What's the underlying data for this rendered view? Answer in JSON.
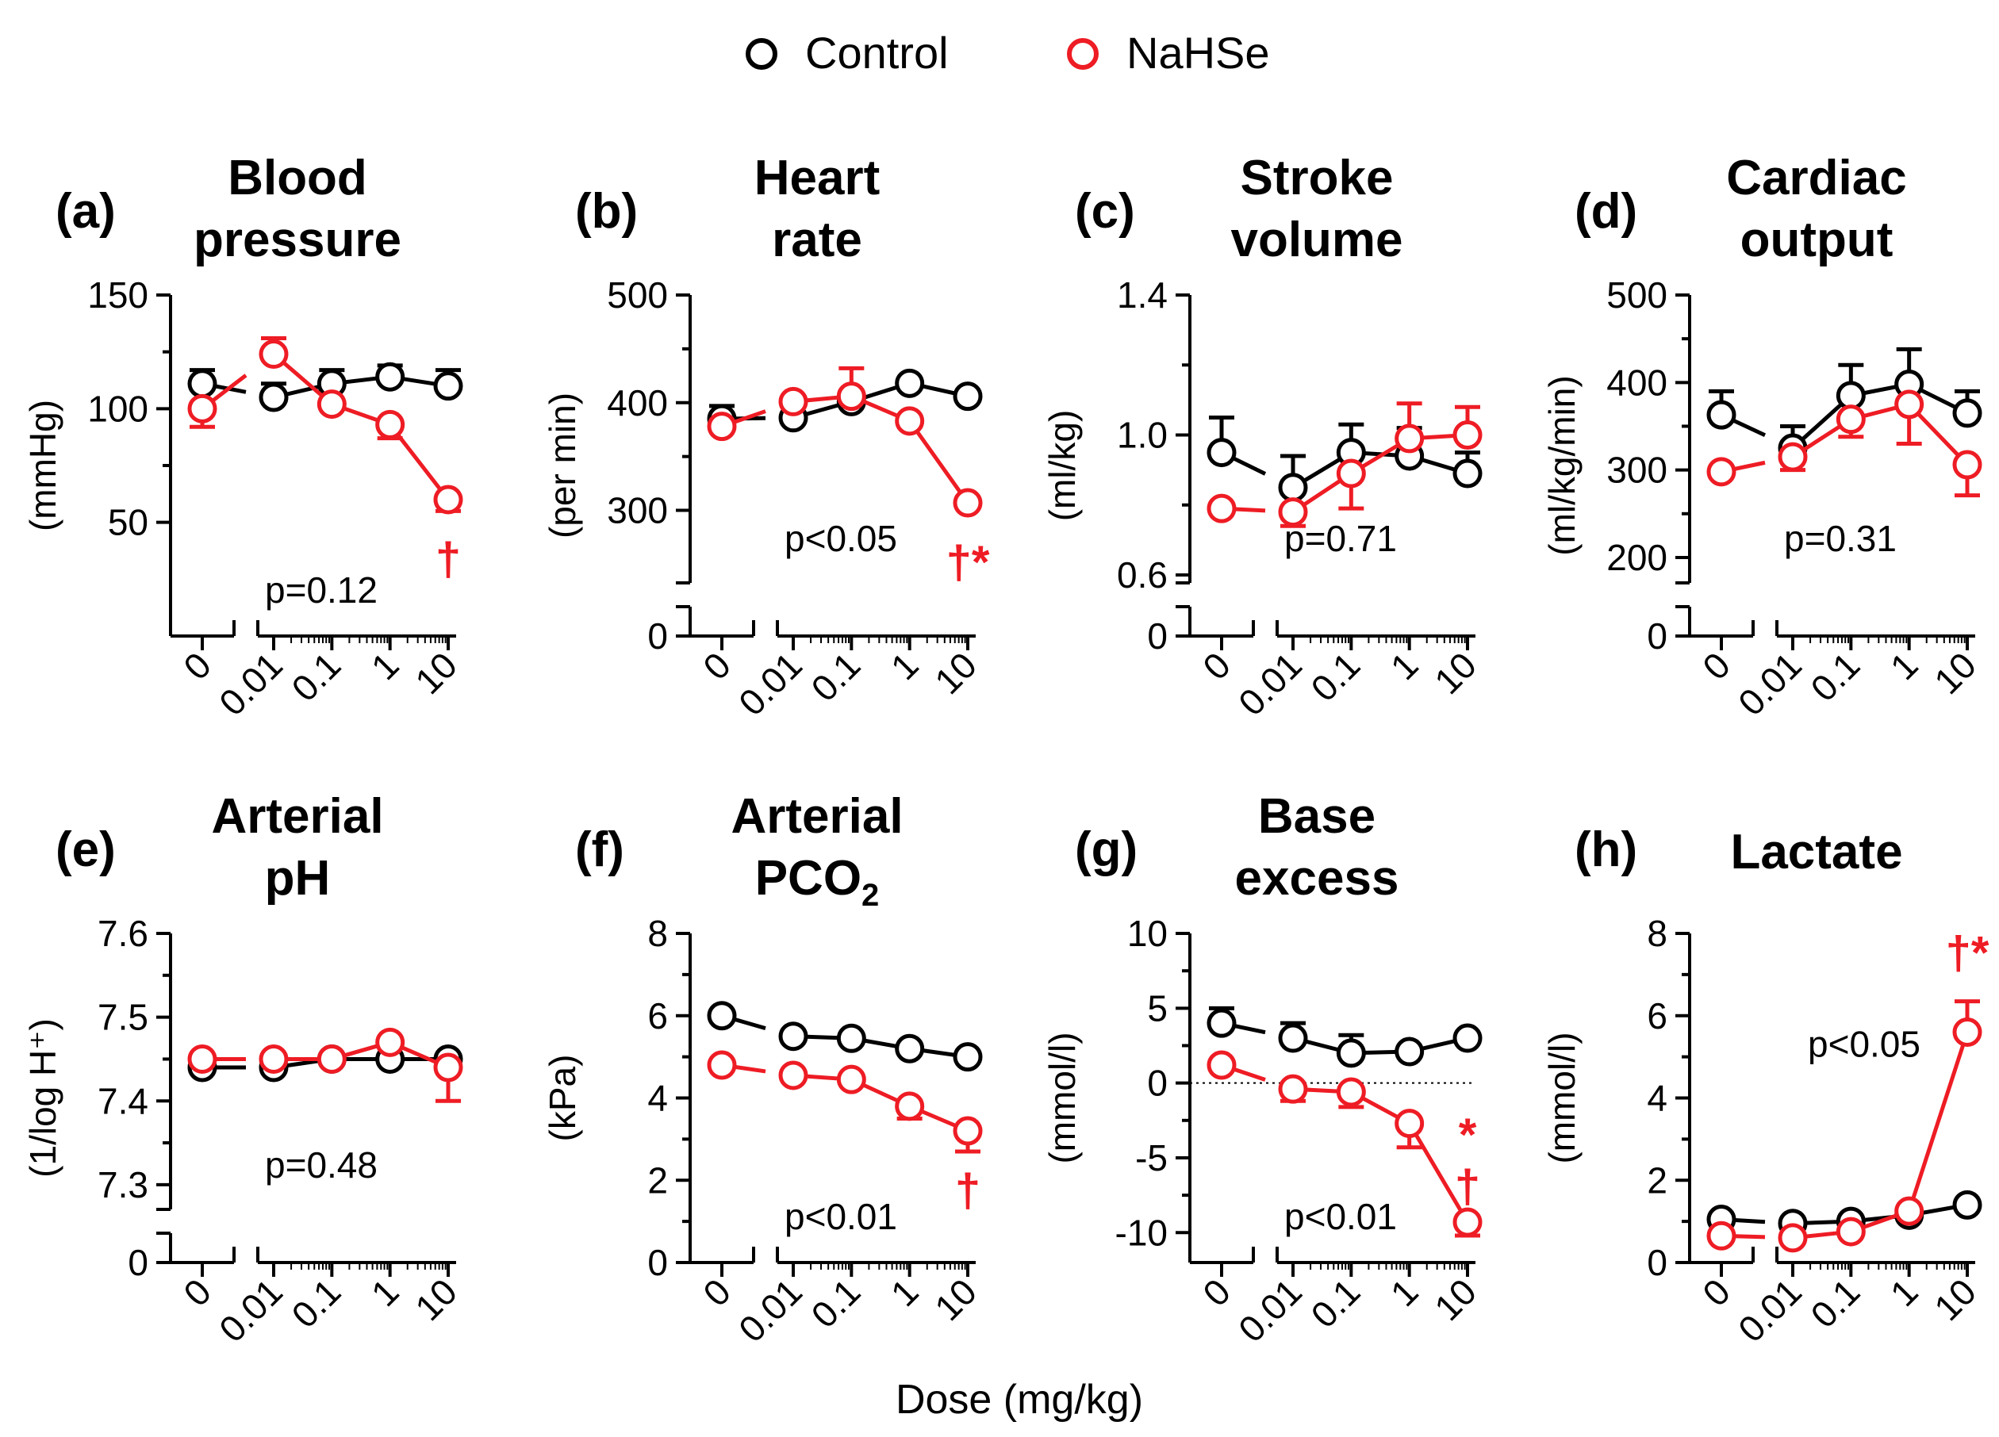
{
  "legend": {
    "entries": [
      {
        "label": "Control",
        "color": "#000000"
      },
      {
        "label": "NaHSe",
        "color": "#ee1c24"
      }
    ]
  },
  "xlabel": "Dose (mg/kg)",
  "x_ticks": [
    "0",
    "0.01",
    "0.1",
    "1",
    "10"
  ],
  "chart_data": [
    {
      "type": "line",
      "letter": "(a)",
      "title": [
        "Blood",
        "pressure"
      ],
      "ylabel": "(mmHg)",
      "yticks": [
        "150",
        "100",
        "50"
      ],
      "ylim": [
        0,
        150
      ],
      "ylim_break": null,
      "pvalue": "p=0.12",
      "zero_line": false,
      "x": [
        0,
        0.01,
        0.1,
        1,
        10
      ],
      "series": [
        {
          "name": "Control",
          "values": [
            111,
            105,
            111,
            114,
            110
          ],
          "err": [
            6,
            6,
            6,
            5,
            7
          ]
        },
        {
          "name": "NaHSe",
          "values": [
            100,
            124,
            102,
            93,
            60
          ],
          "err": [
            8,
            7,
            4,
            6,
            5
          ]
        }
      ],
      "annotations": [
        {
          "text": "†",
          "x": 10,
          "series": "NaHSe",
          "pos": "below"
        }
      ]
    },
    {
      "type": "line",
      "letter": "(b)",
      "title": [
        "Heart",
        "rate"
      ],
      "ylabel": "(per min)",
      "yticks": [
        "500",
        "400",
        "300"
      ],
      "ylim": [
        240,
        500
      ],
      "ylim_break": true,
      "pvalue": "p<0.05",
      "zero_line": false,
      "x": [
        0,
        0.01,
        0.1,
        1,
        10
      ],
      "series": [
        {
          "name": "Control",
          "values": [
            385,
            386,
            401,
            418,
            406
          ],
          "err": [
            12,
            8,
            8,
            8,
            10
          ]
        },
        {
          "name": "NaHSe",
          "values": [
            378,
            401,
            406,
            383,
            307
          ],
          "err": [
            10,
            6,
            26,
            4,
            10
          ]
        }
      ],
      "annotations": [
        {
          "text": "†*",
          "x": 10,
          "series": "NaHSe",
          "pos": "below"
        }
      ]
    },
    {
      "type": "line",
      "letter": "(c)",
      "title": [
        "Stroke",
        "volume"
      ],
      "ylabel": "(ml/kg)",
      "yticks": [
        "1.4",
        "1.0",
        "0.6"
      ],
      "ylim": [
        0.6,
        1.4
      ],
      "ylim_break": true,
      "pvalue": "p=0.71",
      "zero_line": false,
      "x": [
        0,
        0.01,
        0.1,
        1,
        10
      ],
      "series": [
        {
          "name": "Control",
          "values": [
            0.95,
            0.85,
            0.95,
            0.94,
            0.89
          ],
          "err": [
            0.1,
            0.09,
            0.08,
            0.08,
            0.06
          ]
        },
        {
          "name": "NaHSe",
          "values": [
            0.79,
            0.78,
            0.89,
            0.99,
            1.0
          ],
          "err": [
            0.02,
            0.04,
            0.1,
            0.1,
            0.08
          ]
        }
      ],
      "annotations": []
    },
    {
      "type": "line",
      "letter": "(d)",
      "title": [
        "Cardiac",
        "output"
      ],
      "ylabel": "(ml/kg/min)",
      "yticks": [
        "500",
        "400",
        "300",
        "200"
      ],
      "ylim": [
        180,
        500
      ],
      "ylim_break": true,
      "pvalue": "p=0.31",
      "zero_line": false,
      "x": [
        0,
        0.01,
        0.1,
        1,
        10
      ],
      "series": [
        {
          "name": "Control",
          "values": [
            363,
            325,
            385,
            398,
            365
          ],
          "err": [
            27,
            25,
            35,
            40,
            25
          ]
        },
        {
          "name": "NaHSe",
          "values": [
            298,
            315,
            358,
            375,
            306
          ],
          "err": [
            5,
            15,
            20,
            45,
            35
          ]
        }
      ],
      "annotations": []
    },
    {
      "type": "line",
      "letter": "(e)",
      "title": [
        "Arterial",
        "pH"
      ],
      "ylabel": "(1/log H⁺)",
      "yticks": [
        "7.6",
        "7.5",
        "7.4",
        "7.3"
      ],
      "ylim": [
        7.28,
        7.6
      ],
      "ylim_break": true,
      "pvalue": "p=0.48",
      "zero_line": false,
      "x": [
        0,
        0.01,
        0.1,
        1,
        10
      ],
      "series": [
        {
          "name": "Control",
          "values": [
            7.44,
            7.44,
            7.45,
            7.45,
            7.45
          ],
          "err": [
            0.005,
            0.005,
            0.005,
            0.005,
            0.005
          ]
        },
        {
          "name": "NaHSe",
          "values": [
            7.45,
            7.45,
            7.45,
            7.47,
            7.44
          ],
          "err": [
            0.005,
            0.005,
            0.005,
            0.01,
            0.04
          ]
        }
      ],
      "annotations": []
    },
    {
      "type": "line",
      "letter": "(f)",
      "title": [
        "Arterial",
        "PCO"
      ],
      "title_sub": "2",
      "ylabel": "(kPa)",
      "yticks": [
        "8",
        "6",
        "4",
        "2",
        "0"
      ],
      "ylim": [
        0,
        8
      ],
      "ylim_break": null,
      "pvalue": "p<0.01",
      "zero_line": false,
      "x": [
        0,
        0.01,
        0.1,
        1,
        10
      ],
      "series": [
        {
          "name": "Control",
          "values": [
            6.0,
            5.5,
            5.45,
            5.2,
            5.0
          ],
          "err": [
            0.1,
            0.1,
            0.1,
            0.1,
            0.1
          ]
        },
        {
          "name": "NaHSe",
          "values": [
            4.8,
            4.55,
            4.45,
            3.8,
            3.2
          ],
          "err": [
            0.1,
            0.1,
            0.1,
            0.3,
            0.5
          ]
        }
      ],
      "annotations": [
        {
          "text": "†",
          "x": 10,
          "series": "NaHSe",
          "pos": "below"
        }
      ]
    },
    {
      "type": "line",
      "letter": "(g)",
      "title": [
        "Base",
        "excess"
      ],
      "ylabel": "(mmol/l)",
      "yticks": [
        "10",
        "5",
        "0",
        "-5",
        "-10"
      ],
      "ylim": [
        -12,
        10
      ],
      "ylim_break": null,
      "pvalue": "p<0.01",
      "zero_line": true,
      "x": [
        0,
        0.01,
        0.1,
        1,
        10
      ],
      "series": [
        {
          "name": "Control",
          "values": [
            4.0,
            3.0,
            2.0,
            2.1,
            3.0
          ],
          "err": [
            1.0,
            1.0,
            1.2,
            0.5,
            0.4
          ]
        },
        {
          "name": "NaHSe",
          "values": [
            1.2,
            -0.4,
            -0.6,
            -2.7,
            -9.3
          ],
          "err": [
            0.5,
            0.8,
            1.0,
            1.6,
            0.9
          ]
        }
      ],
      "annotations": [
        {
          "text": "*",
          "x": 10,
          "series": "NaHSe",
          "pos": "above"
        },
        {
          "text": "†",
          "x": 10,
          "series": "NaHSe",
          "pos": "above2"
        }
      ]
    },
    {
      "type": "line",
      "letter": "(h)",
      "title": [
        "Lactate"
      ],
      "ylabel": "(mmol/l)",
      "yticks": [
        "8",
        "6",
        "4",
        "2",
        "0"
      ],
      "ylim": [
        0,
        8
      ],
      "ylim_break": null,
      "pvalue": "p<0.05",
      "zero_line": false,
      "x": [
        0,
        0.01,
        0.1,
        1,
        10
      ],
      "series": [
        {
          "name": "Control",
          "values": [
            1.05,
            0.95,
            1.0,
            1.15,
            1.4
          ],
          "err": [
            0.1,
            0.1,
            0.1,
            0.1,
            0.1
          ]
        },
        {
          "name": "NaHSe",
          "values": [
            0.65,
            0.6,
            0.75,
            1.25,
            5.6
          ],
          "err": [
            0.1,
            0.1,
            0.1,
            0.15,
            0.75
          ]
        }
      ],
      "annotations": [
        {
          "text": "†*",
          "x": 10,
          "series": "NaHSe",
          "pos": "above"
        }
      ]
    }
  ]
}
